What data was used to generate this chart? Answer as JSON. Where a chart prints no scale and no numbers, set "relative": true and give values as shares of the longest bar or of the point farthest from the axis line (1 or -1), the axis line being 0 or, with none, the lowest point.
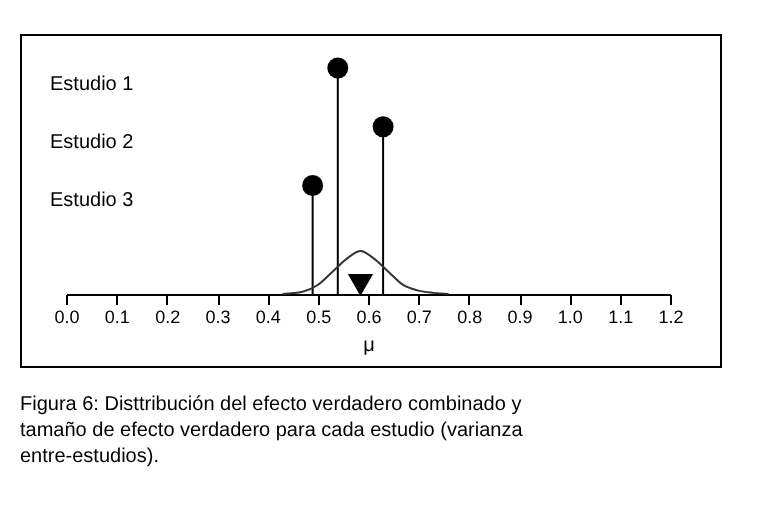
{
  "chart_data": {
    "type": "lollipop",
    "relative": true,
    "xlabel": "μ",
    "xlim": [
      0,
      1.2
    ],
    "xticks": [
      {
        "value": 0,
        "label": "0.0"
      },
      0.1,
      0.2,
      0.3,
      0.4,
      0.5,
      0.6,
      0.7,
      0.8,
      0.9,
      {
        "value": 1,
        "label": "1.0"
      },
      1.1,
      1.2
    ],
    "grid": false,
    "series": [
      {
        "x": [
          0.54
        ],
        "values": [
          1
        ],
        "color": "#000000",
        "marker": "circle"
      },
      {
        "x": [
          0.63
        ],
        "values": [
          0.74
        ],
        "color": "#000000",
        "marker": "circle"
      },
      {
        "x": [
          0.49
        ],
        "values": [
          0.48
        ],
        "color": "#000000",
        "marker": "circle"
      },
      {
        "type": "line",
        "x": [
          0.43,
          0.47,
          0.5,
          0.53,
          0.56,
          0.585,
          0.61,
          0.64,
          0.67,
          0.7,
          0.73,
          0.76
        ],
        "values": [
          0,
          0.01,
          0.04,
          0.1,
          0.16,
          0.19,
          0.16,
          0.1,
          0.04,
          0.015,
          0.005,
          0
        ],
        "color": "#333333"
      },
      {
        "type": "scatter",
        "marker": "triangle",
        "x": [
          0.585
        ],
        "values": [
          0.04
        ],
        "color": "#000000"
      }
    ],
    "annotations": [
      "Estudio 1",
      "Estudio 2",
      "Estudio 3",
      "Figura 6: Disttribución del efecto verdadero combinado y tamaño de efecto verdadero para cada estudio (varianza entre-estudios)."
    ]
  }
}
